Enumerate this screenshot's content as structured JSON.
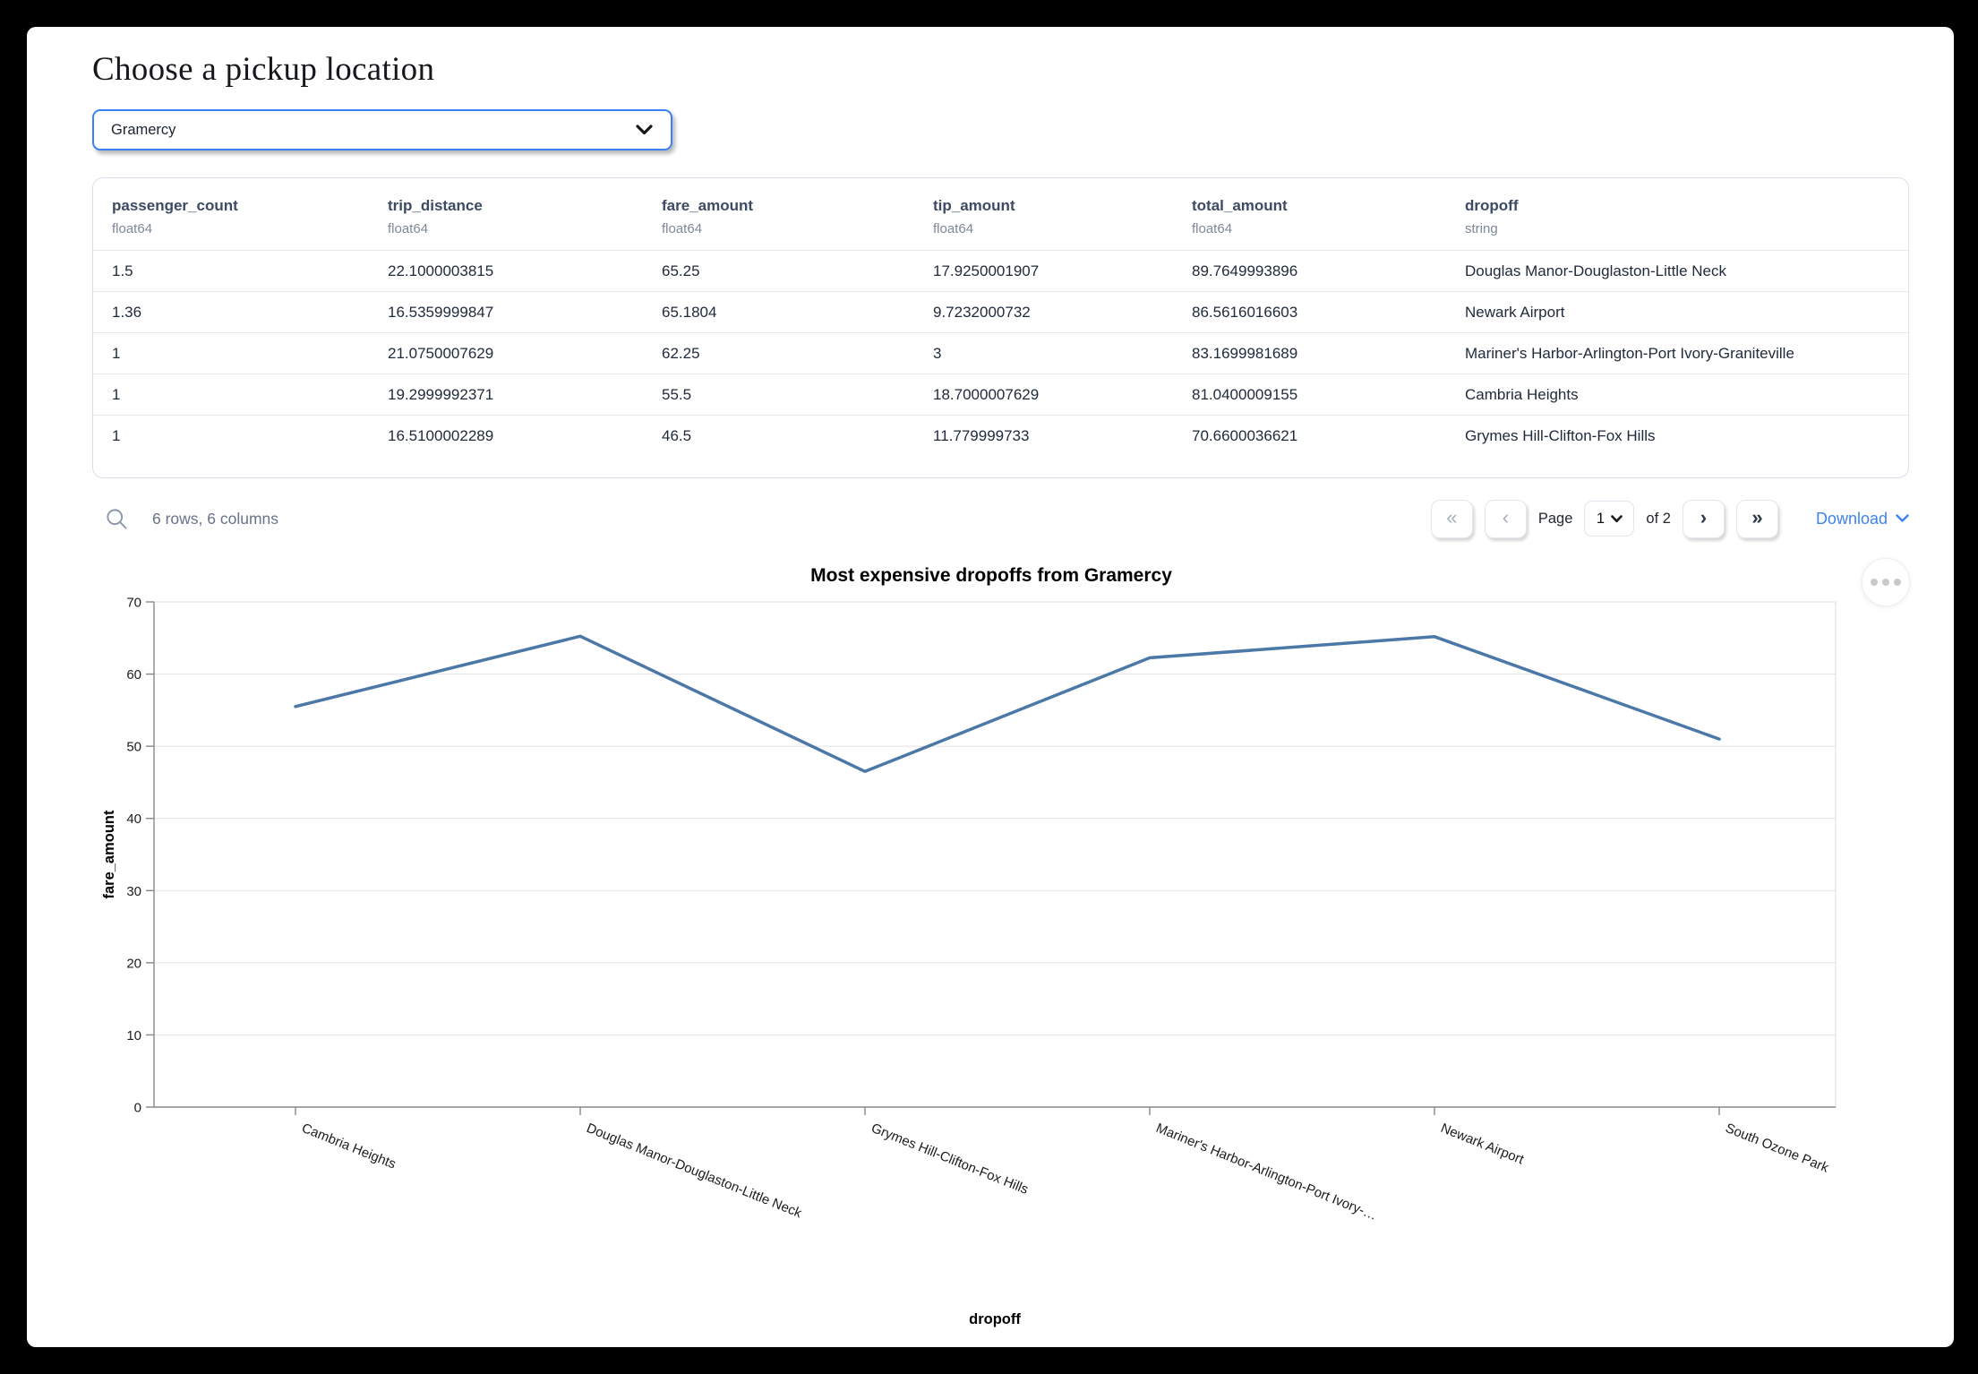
{
  "header": {
    "title": "Choose a pickup location"
  },
  "pickup_select": {
    "value": "Gramercy"
  },
  "table": {
    "columns": [
      {
        "name": "passenger_count",
        "type": "float64"
      },
      {
        "name": "trip_distance",
        "type": "float64"
      },
      {
        "name": "fare_amount",
        "type": "float64"
      },
      {
        "name": "tip_amount",
        "type": "float64"
      },
      {
        "name": "total_amount",
        "type": "float64"
      },
      {
        "name": "dropoff",
        "type": "string"
      }
    ],
    "rows": [
      [
        "1.5",
        "22.1000003815",
        "65.25",
        "17.9250001907",
        "89.7649993896",
        "Douglas Manor-Douglaston-Little Neck"
      ],
      [
        "1.36",
        "16.5359999847",
        "65.1804",
        "9.7232000732",
        "86.5616016603",
        "Newark Airport"
      ],
      [
        "1",
        "21.0750007629",
        "62.25",
        "3",
        "83.1699981689",
        "Mariner's Harbor-Arlington-Port Ivory-Graniteville"
      ],
      [
        "1",
        "19.2999992371",
        "55.5",
        "18.7000007629",
        "81.0400009155",
        "Cambria Heights"
      ],
      [
        "1",
        "16.5100002289",
        "46.5",
        "11.779999733",
        "70.6600036621",
        "Grymes Hill-Clifton-Fox Hills"
      ]
    ]
  },
  "table_footer": {
    "summary": "6 rows, 6 columns",
    "pagination": {
      "first_label": "«",
      "prev_label": "‹",
      "page_label": "Page",
      "page_value": "1",
      "of_label": "of 2",
      "next_label": "›",
      "last_label": "»"
    },
    "download_label": "Download"
  },
  "colors": {
    "accent_blue": "#3b82f6",
    "download_blue": "#3f83f2",
    "line_blue": "#4c78a8"
  },
  "chart_data": {
    "type": "line",
    "title": "Most expensive dropoffs from Gramercy",
    "categories": [
      "Cambria Heights",
      "Douglas Manor-Douglaston-Little Neck",
      "Grymes Hill-Clifton-Fox Hills",
      "Mariner's Harbor-Arlington-Port Ivory-…",
      "Newark Airport",
      "South Ozone Park"
    ],
    "values": [
      55.5,
      65.25,
      46.5,
      62.25,
      65.1804,
      51
    ],
    "xlabel": "dropoff",
    "ylabel": "fare_amount",
    "ylim": [
      0,
      70
    ],
    "ytick_step": 10,
    "yticks": [
      0,
      10,
      20,
      30,
      40,
      50,
      60,
      70
    ],
    "grid": true,
    "legend": "none",
    "line_color": "#4c78a8",
    "x_label_angle": 22
  }
}
